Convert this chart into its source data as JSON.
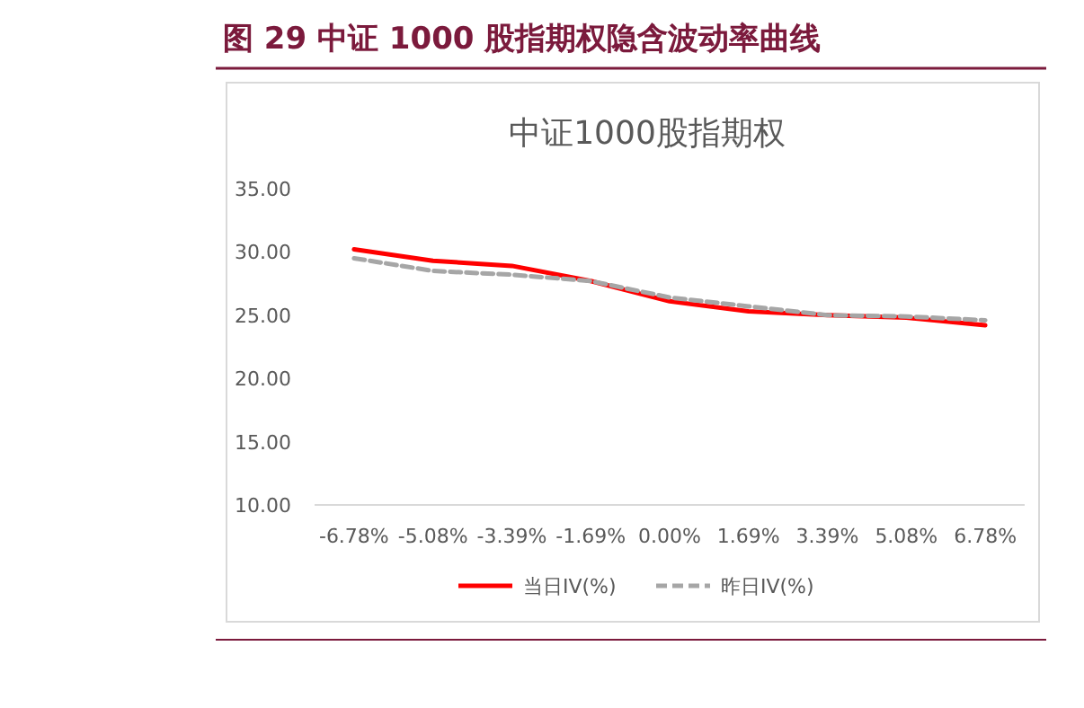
{
  "chart_data": {
    "type": "line",
    "title": "图 29    中证 1000 股指期权隐含波动率曲线",
    "subtitle": "中证1000股指期权",
    "categories": [
      "-6.78%",
      "-5.08%",
      "-3.39%",
      "-1.69%",
      "0.00%",
      "1.69%",
      "3.39%",
      "5.08%",
      "6.78%"
    ],
    "series": [
      {
        "name": "当日IV(%)",
        "color": "#ff0000",
        "line_style": "solid",
        "values": [
          30.2,
          29.3,
          28.9,
          27.7,
          26.1,
          25.3,
          25.0,
          24.8,
          24.2
        ]
      },
      {
        "name": "昨日IV(%)",
        "color": "#a6a6a6",
        "line_style": "dashed",
        "values": [
          29.5,
          28.5,
          28.2,
          27.7,
          26.4,
          25.7,
          25.0,
          24.9,
          24.6
        ]
      }
    ],
    "ylim": [
      10,
      35
    ],
    "yticks": [
      {
        "value": 10,
        "label": "10.00"
      },
      {
        "value": 15,
        "label": "15.00"
      },
      {
        "value": 20,
        "label": "20.00"
      },
      {
        "value": 25,
        "label": "25.00"
      },
      {
        "value": 30,
        "label": "30.00"
      },
      {
        "value": 35,
        "label": "35.00"
      }
    ],
    "grid": false,
    "legend": "bottom",
    "marker": "none"
  }
}
